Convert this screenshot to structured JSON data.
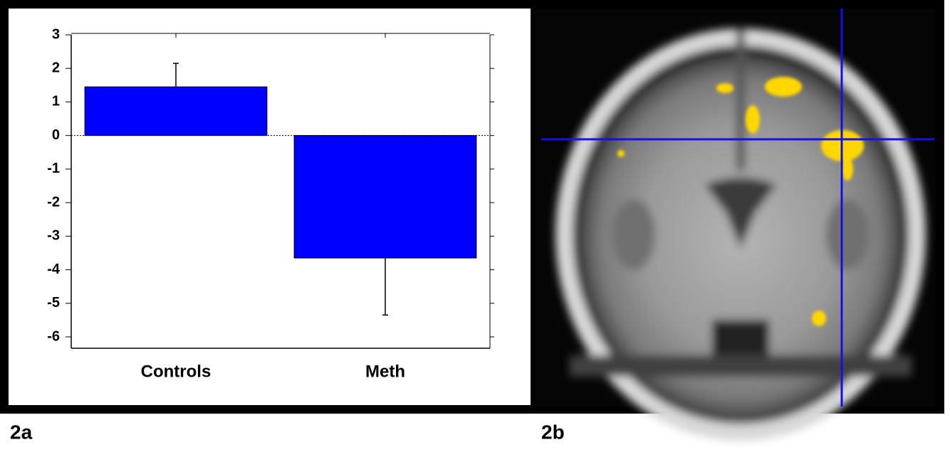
{
  "chart_data": {
    "type": "bar",
    "categories": [
      "Controls",
      "Meth"
    ],
    "values": [
      1.45,
      -3.65
    ],
    "errors": [
      0.7,
      1.7
    ],
    "color": "#0000ff",
    "ylim": [
      -6,
      3
    ],
    "yticks": [
      -6,
      -5,
      -4,
      -3,
      -2,
      -1,
      0,
      1,
      2,
      3
    ]
  },
  "panel_labels": [
    "2a",
    "2b"
  ]
}
